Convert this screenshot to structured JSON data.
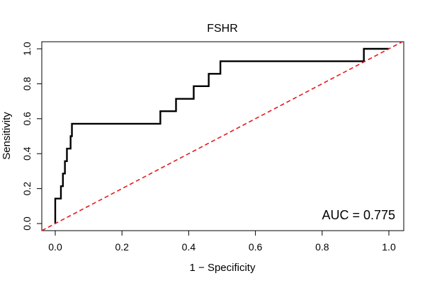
{
  "chart_data": {
    "type": "line",
    "title": "FSHR",
    "xlabel": "1 − Specificity",
    "ylabel": "Sensitivity",
    "xlim": [
      0.0,
      1.0
    ],
    "ylim": [
      0.0,
      1.0
    ],
    "x_ticks": [
      "0.0",
      "0.2",
      "0.4",
      "0.6",
      "0.8",
      "1.0"
    ],
    "y_ticks": [
      "0.0",
      "0.2",
      "0.4",
      "0.6",
      "0.8",
      "1.0"
    ],
    "grid": false,
    "annotation": "AUC = 0.775",
    "series": [
      {
        "style": "solid",
        "color": "#000000",
        "points": [
          [
            0.0,
            0.0
          ],
          [
            0.0,
            0.143
          ],
          [
            0.017,
            0.143
          ],
          [
            0.017,
            0.214
          ],
          [
            0.023,
            0.214
          ],
          [
            0.023,
            0.286
          ],
          [
            0.029,
            0.286
          ],
          [
            0.029,
            0.357
          ],
          [
            0.035,
            0.357
          ],
          [
            0.035,
            0.429
          ],
          [
            0.046,
            0.429
          ],
          [
            0.046,
            0.5
          ],
          [
            0.05,
            0.5
          ],
          [
            0.05,
            0.571
          ],
          [
            0.315,
            0.571
          ],
          [
            0.315,
            0.643
          ],
          [
            0.362,
            0.643
          ],
          [
            0.362,
            0.714
          ],
          [
            0.415,
            0.714
          ],
          [
            0.415,
            0.786
          ],
          [
            0.46,
            0.786
          ],
          [
            0.46,
            0.857
          ],
          [
            0.495,
            0.857
          ],
          [
            0.495,
            0.929
          ],
          [
            0.925,
            0.929
          ],
          [
            0.925,
            1.0
          ],
          [
            1.0,
            1.0
          ]
        ]
      },
      {
        "style": "dashed",
        "color": "#e41a1c",
        "points": [
          [
            -0.04,
            -0.04
          ],
          [
            1.04,
            1.04
          ]
        ]
      }
    ]
  }
}
